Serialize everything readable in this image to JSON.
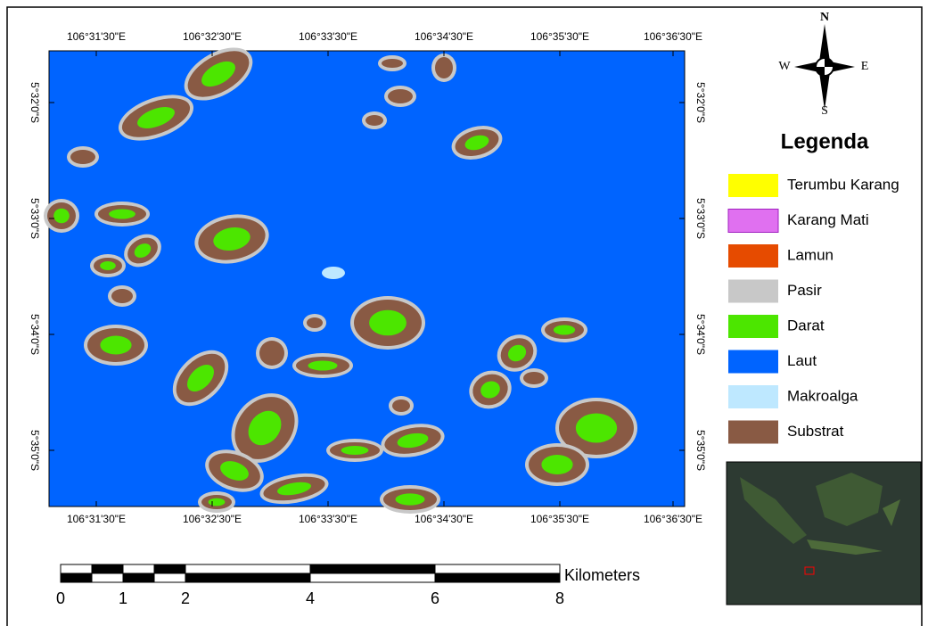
{
  "map": {
    "top_labels": [
      "106°31'30\"E",
      "106°32'30\"E",
      "106°33'30\"E",
      "106°34'30\"E",
      "106°35'30\"E",
      "106°36'30\"E"
    ],
    "bottom_labels": [
      "106°31'30\"E",
      "106°32'30\"E",
      "106°33'30\"E",
      "106°34'30\"E",
      "106°35'30\"E",
      "106°36'30\"E"
    ],
    "left_labels": [
      "5°32'0\"S",
      "5°33'0\"S",
      "5°34'0\"S",
      "5°35'0\"S"
    ],
    "right_labels": [
      "5°32'0\"S",
      "5°33'0\"S",
      "5°34'0\"S",
      "5°35'0\"S"
    ],
    "compass": {
      "n": "N",
      "s": "S",
      "e": "E",
      "w": "W"
    },
    "legend": {
      "title": "Legenda",
      "items": [
        {
          "label": "Terumbu Karang",
          "color": "#ffff00"
        },
        {
          "label": "Karang Mati",
          "color": "#e070f0"
        },
        {
          "label": "Lamun",
          "color": "#e64b00"
        },
        {
          "label": "Pasir",
          "color": "#c8c8c8"
        },
        {
          "label": "Darat",
          "color": "#4ce600"
        },
        {
          "label": "Laut",
          "color": "#0064ff"
        },
        {
          "label": "Makroalga",
          "color": "#bee8ff"
        },
        {
          "label": "Substrat",
          "color": "#895a44"
        }
      ]
    },
    "scale_bar": {
      "unit": "Kilometers",
      "ticks": [
        0,
        1,
        2,
        4,
        6,
        8
      ]
    }
  }
}
